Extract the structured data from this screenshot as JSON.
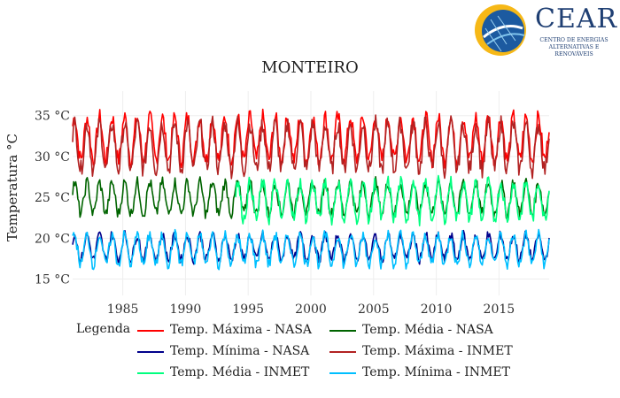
{
  "chart_data": {
    "type": "line",
    "title": "MONTEIRO",
    "ylabel": "Temperatura °C",
    "xlabel": "",
    "xlim": [
      1981,
      2019
    ],
    "ylim": [
      13,
      38
    ],
    "x_ticks": [
      1985,
      1990,
      1995,
      2000,
      2005,
      2010,
      2015
    ],
    "y_ticks": [
      15,
      20,
      25,
      30,
      35
    ],
    "y_tick_labels": [
      "15 °C",
      "20 °C",
      "25 °C",
      "30 °C",
      "35 °C"
    ],
    "grid": true,
    "legend_title": "Legenda",
    "legend_position": "bottom",
    "series": [
      {
        "name": "Temp. Máxima - NASA",
        "color": "#ff0000",
        "x_range": [
          1981,
          2019
        ],
        "mean": 32.2,
        "amplitude": 2.6
      },
      {
        "name": "Temp. Média - NASA",
        "color": "#006400",
        "x_range": [
          1981,
          2019
        ],
        "mean": 24.9,
        "amplitude": 1.9
      },
      {
        "name": "Temp. Mínima - NASA",
        "color": "#00008b",
        "x_range": [
          1981,
          2019
        ],
        "mean": 18.9,
        "amplitude": 1.5
      },
      {
        "name": "Temp. Máxima - INMET",
        "color": "#b22222",
        "x_range": [
          1981,
          2019
        ],
        "mean": 31.2,
        "amplitude": 2.8
      },
      {
        "name": "Temp. Média - INMET",
        "color": "#00ff7f",
        "x_range": [
          1994,
          2019
        ],
        "mean": 24.6,
        "amplitude": 2.2
      },
      {
        "name": "Temp. Mínima - INMET",
        "color": "#00bfff",
        "x_range": [
          1981,
          2019
        ],
        "mean": 18.6,
        "amplitude": 1.8
      }
    ]
  },
  "logo": {
    "word": "CEAR",
    "subtitle": "CENTRO DE ENERGIAS ALTERNATIVAS E RENOVÁVEIS"
  }
}
